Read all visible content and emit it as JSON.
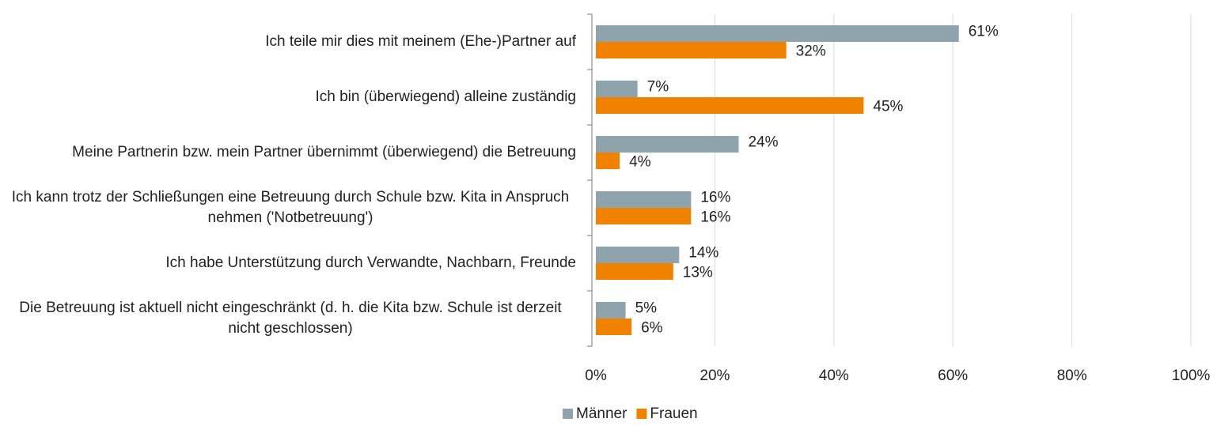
{
  "chart_data": {
    "type": "barh",
    "categories": [
      "Ich teile mir dies mit meinem (Ehe-)Partner auf",
      "Ich bin (überwiegend) alleine zuständig",
      "Meine Partnerin bzw. mein Partner übernimmt (überwiegend) die Betreuung",
      "Ich kann trotz der Schließungen eine Betreuung durch Schule bzw. Kita in Anspruch nehmen ('Notbetreuung')",
      "Ich habe Unterstützung durch Verwandte, Nachbarn, Freunde",
      "Die Betreuung ist aktuell nicht eingeschränkt (d. h. die Kita bzw. Schule ist derzeit nicht geschlossen)"
    ],
    "series": [
      {
        "name": "Männer",
        "color": "#8fa3ad",
        "values": [
          61,
          7,
          24,
          16,
          14,
          5
        ],
        "value_labels": [
          "61%",
          "7%",
          "24%",
          "16%",
          "14%",
          "5%"
        ]
      },
      {
        "name": "Frauen",
        "color": "#f08200",
        "values": [
          32,
          45,
          4,
          16,
          13,
          6
        ],
        "value_labels": [
          "32%",
          "45%",
          "4%",
          "16%",
          "13%",
          "6%"
        ]
      }
    ],
    "xlim": [
      0,
      100
    ],
    "xticks": [
      {
        "value": 0,
        "label": "0%"
      },
      {
        "value": 20,
        "label": "20%"
      },
      {
        "value": 40,
        "label": "40%"
      },
      {
        "value": 60,
        "label": "60%"
      },
      {
        "value": 80,
        "label": "80%"
      },
      {
        "value": 100,
        "label": "100%"
      }
    ],
    "grid": true,
    "legend": "bottom"
  }
}
